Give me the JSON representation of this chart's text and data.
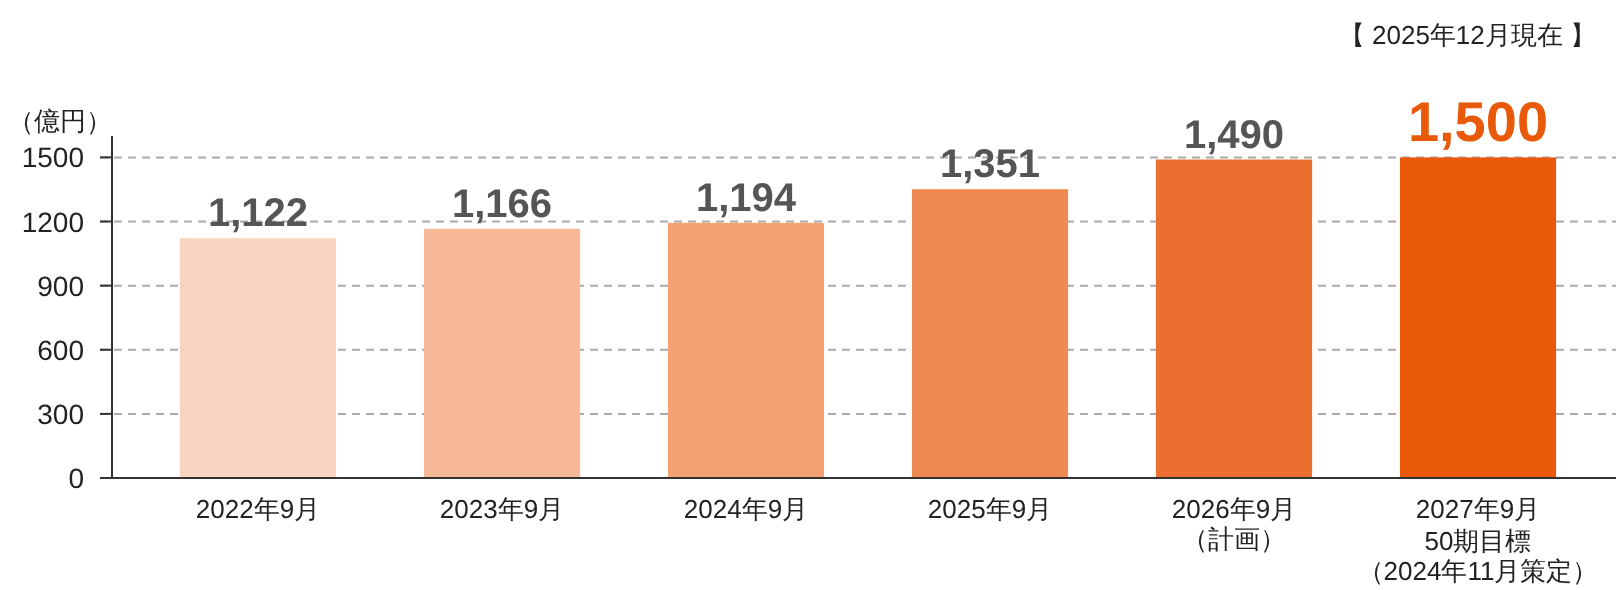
{
  "chart_data": {
    "type": "bar",
    "ylabel": "（億円）",
    "annotations": [
      "【 2025年12月現在 】"
    ],
    "categories": [
      "2022年9月",
      "2023年9月",
      "2024年9月",
      "2025年9月",
      "2026年9月（計画）",
      "2027年9月50期目標（2024年11月策定）"
    ],
    "values": [
      1122,
      1166,
      1194,
      1351,
      1490,
      1500
    ],
    "value_labels": [
      "1,122",
      "1,166",
      "1,194",
      "1,351",
      "1,490",
      "1,500"
    ],
    "colors": [
      "#f9d4c0",
      "#f7b897",
      "#f4a274",
      "#f08a53",
      "#ec6f2f",
      "#e85a0a"
    ],
    "ylim": [
      0,
      1600
    ],
    "yticks": [
      0,
      300,
      600,
      900,
      1200,
      1500
    ],
    "grid": "y"
  }
}
